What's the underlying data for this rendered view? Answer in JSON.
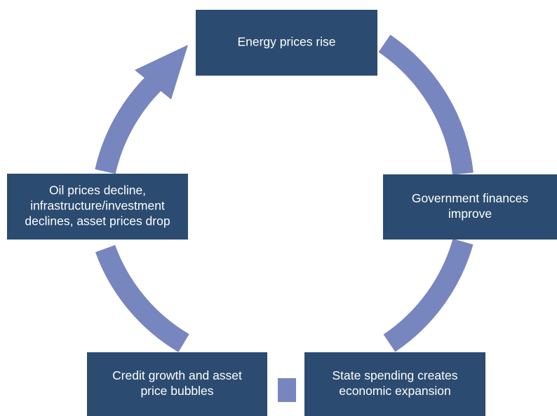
{
  "nodes": [
    {
      "label": [
        "Energy prices rise"
      ]
    },
    {
      "label": [
        "Government finances",
        "improve"
      ]
    },
    {
      "label": [
        "State spending creates",
        "economic expansion"
      ]
    },
    {
      "label": [
        "Credit growth and asset",
        "price bubbles"
      ]
    },
    {
      "label": [
        "Oil prices decline,",
        "infrastructure/investment",
        "declines, asset prices drop"
      ]
    }
  ]
}
